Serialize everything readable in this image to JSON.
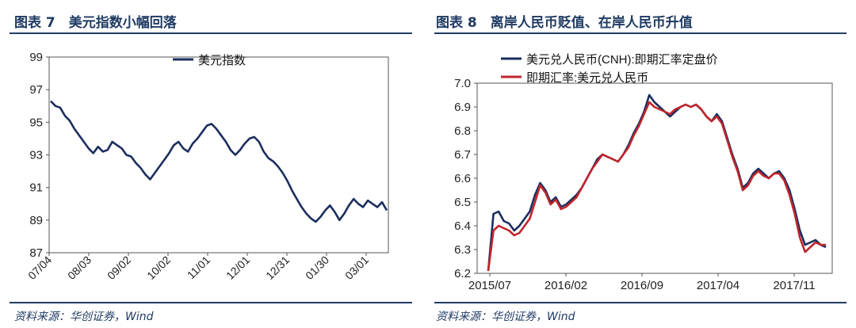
{
  "left": {
    "figure_title": "图表 7　美元指数小幅回落",
    "source": "资料来源：华创证券，Wind"
  },
  "right": {
    "figure_title": "图表 8　离岸人民币贬值、在岸人民币升值",
    "source": "资料来源：华创证券，Wind"
  },
  "chart_data": [
    {
      "type": "line",
      "title": "",
      "xlabel": "",
      "ylabel": "",
      "ylim": [
        87,
        99
      ],
      "yticks": [
        "87",
        "89",
        "91",
        "93",
        "95",
        "97",
        "99"
      ],
      "xticks": [
        "07/04",
        "08/03",
        "09/02",
        "10/02",
        "11/01",
        "12/01",
        "12/31",
        "01/30",
        "03/01"
      ],
      "legend": "top-center",
      "series": [
        {
          "name": "美元指数",
          "color": "#1a2e5e",
          "values": [
            96.3,
            96.0,
            95.9,
            95.4,
            95.1,
            94.6,
            94.2,
            93.8,
            93.4,
            93.1,
            93.5,
            93.2,
            93.3,
            93.8,
            93.6,
            93.4,
            93.0,
            92.9,
            92.5,
            92.2,
            91.8,
            91.5,
            91.9,
            92.3,
            92.7,
            93.1,
            93.6,
            93.8,
            93.4,
            93.2,
            93.7,
            94.0,
            94.4,
            94.8,
            94.9,
            94.6,
            94.2,
            93.8,
            93.3,
            93.0,
            93.3,
            93.7,
            94.0,
            94.1,
            93.8,
            93.2,
            92.8,
            92.6,
            92.3,
            91.9,
            91.4,
            90.8,
            90.3,
            89.8,
            89.4,
            89.1,
            88.9,
            89.2,
            89.6,
            89.9,
            89.5,
            89.0,
            89.4,
            89.9,
            90.3,
            90.0,
            89.8,
            90.2,
            90.0,
            89.8,
            90.1,
            89.6
          ]
        }
      ]
    },
    {
      "type": "line",
      "title": "",
      "xlabel": "",
      "ylabel": "",
      "ylim": [
        6.2,
        7.0
      ],
      "yticks": [
        "6.2",
        "6.3",
        "6.4",
        "6.5",
        "6.6",
        "6.7",
        "6.8",
        "6.9",
        "7.0"
      ],
      "xticks": [
        "2015/07",
        "2016/02",
        "2016/09",
        "2017/04",
        "2017/11"
      ],
      "legend": "top-left",
      "series": [
        {
          "name": "美元兑人民币(CNH):即期汇率定盘价",
          "color": "#1a2e5e",
          "values": [
            6.21,
            6.45,
            6.46,
            6.42,
            6.41,
            6.38,
            6.4,
            6.43,
            6.46,
            6.53,
            6.58,
            6.55,
            6.5,
            6.52,
            6.48,
            6.49,
            6.51,
            6.53,
            6.56,
            6.6,
            6.64,
            6.68,
            6.7,
            6.69,
            6.68,
            6.67,
            6.7,
            6.74,
            6.79,
            6.83,
            6.88,
            6.95,
            6.92,
            6.9,
            6.88,
            6.86,
            6.88,
            6.9,
            6.91,
            6.9,
            6.91,
            6.89,
            6.86,
            6.84,
            6.87,
            6.84,
            6.77,
            6.7,
            6.64,
            6.56,
            6.58,
            6.62,
            6.64,
            6.62,
            6.6,
            6.62,
            6.63,
            6.6,
            6.55,
            6.47,
            6.38,
            6.32,
            6.33,
            6.34,
            6.32,
            6.31
          ]
        },
        {
          "name": "即期汇率:美元兑人民币",
          "color": "#c0262b",
          "values": [
            6.21,
            6.38,
            6.4,
            6.39,
            6.38,
            6.36,
            6.37,
            6.4,
            6.43,
            6.5,
            6.57,
            6.54,
            6.49,
            6.51,
            6.47,
            6.48,
            6.5,
            6.52,
            6.56,
            6.6,
            6.64,
            6.67,
            6.7,
            6.69,
            6.68,
            6.67,
            6.7,
            6.73,
            6.78,
            6.82,
            6.87,
            6.92,
            6.9,
            6.89,
            6.88,
            6.87,
            6.89,
            6.9,
            6.91,
            6.9,
            6.91,
            6.89,
            6.86,
            6.84,
            6.86,
            6.83,
            6.76,
            6.69,
            6.63,
            6.55,
            6.57,
            6.61,
            6.63,
            6.61,
            6.6,
            6.62,
            6.62,
            6.59,
            6.53,
            6.45,
            6.35,
            6.29,
            6.31,
            6.33,
            6.32,
            6.32
          ]
        }
      ]
    }
  ]
}
